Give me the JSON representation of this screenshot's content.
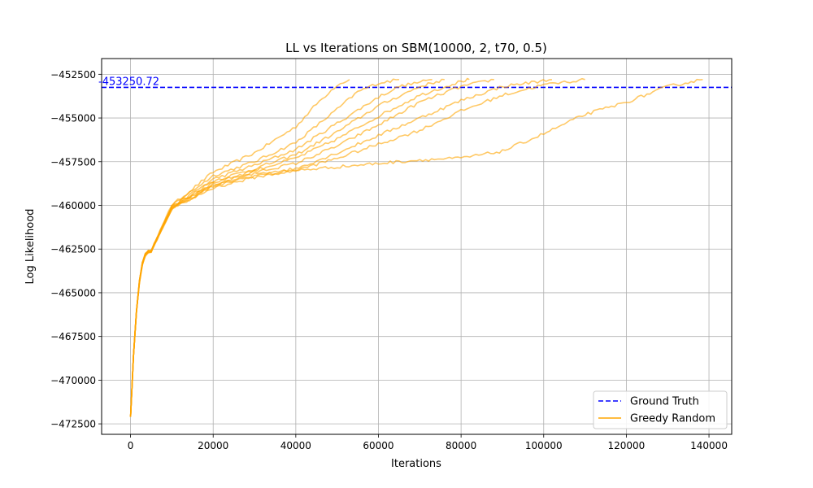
{
  "chart_data": {
    "type": "line",
    "title": "LL vs Iterations on SBM(10000, 2, t70, 0.5)",
    "xlabel": "Iterations",
    "ylabel": "Log Likelihood",
    "xlim": [
      -7000,
      145500
    ],
    "ylim": [
      -473100,
      -451600
    ],
    "xticks": [
      0,
      20000,
      40000,
      60000,
      80000,
      100000,
      120000,
      140000
    ],
    "yticks": [
      -472500,
      -470000,
      -467500,
      -465000,
      -462500,
      -460000,
      -457500,
      -455000,
      -452500
    ],
    "grid": true,
    "legend_position": "lower-right",
    "colors": {
      "ground_truth": "#0000ff",
      "greedy": "#ffa500"
    },
    "ground_truth": {
      "name": "Ground Truth",
      "y": -453250.72,
      "label": "-453250.72"
    },
    "greedy_label": "Greedy Random",
    "greedy_runs": [
      {
        "x": [
          0,
          5000,
          10000,
          20000,
          30000,
          40000,
          45000,
          50000,
          53000
        ],
        "y": [
          -472100,
          -462600,
          -460000,
          -458100,
          -457000,
          -455500,
          -454200,
          -453100,
          -452800
        ]
      },
      {
        "x": [
          0,
          5000,
          10000,
          20000,
          30000,
          40000,
          50000,
          55000,
          60000,
          65000
        ],
        "y": [
          -472100,
          -462600,
          -460000,
          -458300,
          -457500,
          -456400,
          -454500,
          -453500,
          -453000,
          -452800
        ]
      },
      {
        "x": [
          0,
          5000,
          10000,
          20000,
          30000,
          40000,
          50000,
          60000,
          65000,
          73000
        ],
        "y": [
          -472100,
          -462600,
          -460100,
          -458500,
          -457700,
          -456800,
          -455300,
          -453800,
          -453200,
          -452800
        ]
      },
      {
        "x": [
          0,
          5000,
          10000,
          20000,
          30000,
          40000,
          50000,
          60000,
          70000,
          76000
        ],
        "y": [
          -472100,
          -462600,
          -460100,
          -458600,
          -457900,
          -457100,
          -455800,
          -454300,
          -453200,
          -452800
        ]
      },
      {
        "x": [
          0,
          5000,
          10000,
          20000,
          30000,
          40000,
          50000,
          60000,
          70000,
          80000,
          82000
        ],
        "y": [
          -472100,
          -462600,
          -460100,
          -458700,
          -458000,
          -457300,
          -456200,
          -454900,
          -453700,
          -452900,
          -452800
        ]
      },
      {
        "x": [
          0,
          5000,
          10000,
          20000,
          30000,
          40000,
          50000,
          60000,
          70000,
          80000,
          88000
        ],
        "y": [
          -472100,
          -462600,
          -460100,
          -458800,
          -458100,
          -457600,
          -456600,
          -455400,
          -454100,
          -453200,
          -452800
        ]
      },
      {
        "x": [
          0,
          5000,
          10000,
          20000,
          30000,
          40000,
          50000,
          60000,
          70000,
          80000,
          90000,
          102000
        ],
        "y": [
          -472100,
          -462600,
          -460200,
          -458900,
          -458200,
          -457900,
          -457000,
          -456000,
          -455000,
          -454000,
          -453200,
          -452800
        ]
      },
      {
        "x": [
          0,
          5000,
          10000,
          20000,
          30000,
          40000,
          50000,
          60000,
          70000,
          80000,
          90000,
          100000,
          110000
        ],
        "y": [
          -472100,
          -462600,
          -460200,
          -458900,
          -458300,
          -458000,
          -457300,
          -456500,
          -455700,
          -454600,
          -453700,
          -453100,
          -452800
        ]
      },
      {
        "x": [
          0,
          5000,
          10000,
          20000,
          30000,
          40000,
          50000,
          60000,
          70000,
          80000,
          90000,
          100000,
          110000,
          120000,
          130000,
          138500
        ],
        "y": [
          -472100,
          -462600,
          -460200,
          -459000,
          -458400,
          -458000,
          -457800,
          -457600,
          -457400,
          -457300,
          -456900,
          -455900,
          -454800,
          -454100,
          -453200,
          -452800
        ]
      }
    ]
  }
}
